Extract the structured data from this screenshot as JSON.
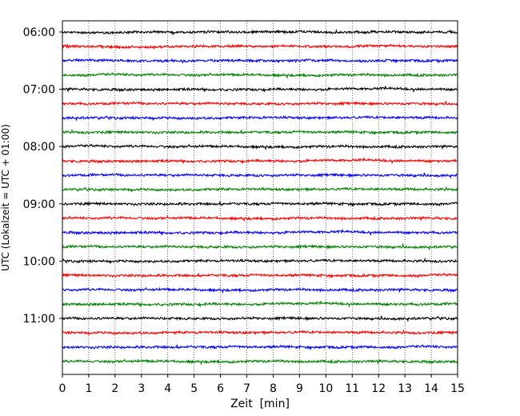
{
  "chart_data": {
    "type": "line",
    "title": "",
    "xlabel": "Zeit  [min]",
    "ylabel": "UTC (Lokalzeit = UTC + 01:00)",
    "xlim": [
      0,
      15
    ],
    "x_ticks": [
      "0",
      "1",
      "2",
      "3",
      "4",
      "5",
      "6",
      "7",
      "8",
      "9",
      "10",
      "11",
      "12",
      "13",
      "14",
      "15"
    ],
    "y_ticks": [
      "06:00",
      "07:00",
      "08:00",
      "09:00",
      "10:00",
      "11:00"
    ],
    "grid": "vertical dotted",
    "trace_interval_minutes": 15,
    "start_time": "06:00",
    "traces": [
      {
        "time": "06:00",
        "color": "#000000"
      },
      {
        "time": "06:15",
        "color": "#ff0000"
      },
      {
        "time": "06:30",
        "color": "#0000ff"
      },
      {
        "time": "06:45",
        "color": "#008000"
      },
      {
        "time": "07:00",
        "color": "#000000"
      },
      {
        "time": "07:15",
        "color": "#ff0000"
      },
      {
        "time": "07:30",
        "color": "#0000ff"
      },
      {
        "time": "07:45",
        "color": "#008000"
      },
      {
        "time": "08:00",
        "color": "#000000"
      },
      {
        "time": "08:15",
        "color": "#ff0000"
      },
      {
        "time": "08:30",
        "color": "#0000ff"
      },
      {
        "time": "08:45",
        "color": "#008000"
      },
      {
        "time": "09:00",
        "color": "#000000"
      },
      {
        "time": "09:15",
        "color": "#ff0000"
      },
      {
        "time": "09:30",
        "color": "#0000ff"
      },
      {
        "time": "09:45",
        "color": "#008000"
      },
      {
        "time": "10:00",
        "color": "#000000"
      },
      {
        "time": "10:15",
        "color": "#ff0000"
      },
      {
        "time": "10:30",
        "color": "#0000ff"
      },
      {
        "time": "10:45",
        "color": "#008000"
      },
      {
        "time": "11:00",
        "color": "#000000"
      },
      {
        "time": "11:15",
        "color": "#ff0000"
      },
      {
        "time": "11:30",
        "color": "#0000ff"
      },
      {
        "time": "11:45",
        "color": "#008000"
      }
    ]
  }
}
